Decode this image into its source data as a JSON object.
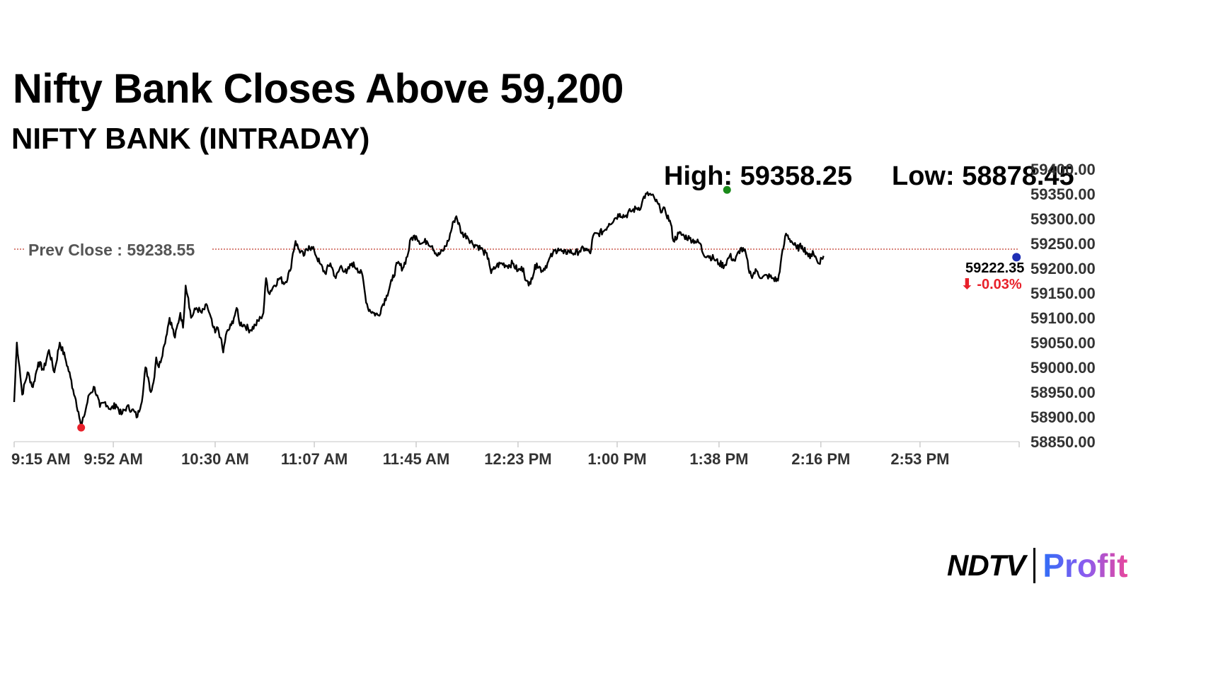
{
  "headline": "Nifty Bank Closes Above 59,200",
  "subheadline": "NIFTY BANK (INTRADAY)",
  "high_label": "High: 59358.25",
  "low_label": "Low: 58878.45",
  "prev_close_label": "Prev Close : 59238.55",
  "last_price_label": "59222.35",
  "change_label": "⬇ -0.03%",
  "logo": {
    "left": "NDTV",
    "right": "Profit"
  },
  "colors": {
    "line": "#000000",
    "high_marker": "#1a8a1a",
    "low_marker": "#e8202a",
    "last_marker": "#1f2fb5",
    "prev_close_line": "#c0392b",
    "change_negative": "#e8202a"
  },
  "chart_data": {
    "type": "line",
    "title": "Nifty Bank Closes Above 59,200",
    "subtitle": "NIFTY BANK (INTRADAY)",
    "xlabel": "",
    "ylabel": "",
    "x_tick_labels": [
      "9:15 AM",
      "9:52 AM",
      "10:30 AM",
      "11:07 AM",
      "11:45 AM",
      "12:23 PM",
      "1:00 PM",
      "1:38 PM",
      "2:16 PM",
      "2:53 PM"
    ],
    "x_tick_minutes": [
      555,
      592,
      630,
      667,
      705,
      743,
      780,
      818,
      856,
      893
    ],
    "xlim_minutes": [
      555,
      930
    ],
    "y_tick_labels": [
      "59400.00",
      "59350.00",
      "59300.00",
      "59250.00",
      "59200.00",
      "59150.00",
      "59100.00",
      "59050.00",
      "59000.00",
      "58950.00",
      "58900.00",
      "58850.00"
    ],
    "ylim": [
      58850,
      59400
    ],
    "prev_close": 59238.55,
    "high": {
      "minute": 821,
      "value": 59358.25
    },
    "low": {
      "minute": 580,
      "value": 58878.45
    },
    "last": {
      "minute": 929,
      "value": 59222.35
    },
    "series": [
      {
        "points": [
          [
            555,
            58930
          ],
          [
            556,
            59050
          ],
          [
            557,
            59000
          ],
          [
            558,
            58945
          ],
          [
            560,
            58990
          ],
          [
            562,
            58960
          ],
          [
            564,
            59010
          ],
          [
            566,
            58995
          ],
          [
            568,
            59035
          ],
          [
            570,
            58990
          ],
          [
            572,
            59050
          ],
          [
            574,
            59020
          ],
          [
            576,
            58980
          ],
          [
            577,
            58955
          ],
          [
            578,
            58935
          ],
          [
            579,
            58910
          ],
          [
            580,
            58878
          ],
          [
            581,
            58900
          ],
          [
            583,
            58945
          ],
          [
            585,
            58960
          ],
          [
            587,
            58920
          ],
          [
            589,
            58930
          ],
          [
            591,
            58915
          ],
          [
            593,
            58925
          ],
          [
            595,
            58905
          ],
          [
            597,
            58920
          ],
          [
            599,
            58915
          ],
          [
            601,
            58900
          ],
          [
            603,
            58945
          ],
          [
            604,
            59000
          ],
          [
            605,
            58980
          ],
          [
            606,
            58950
          ],
          [
            607,
            58970
          ],
          [
            608,
            59020
          ],
          [
            609,
            59000
          ],
          [
            611,
            59045
          ],
          [
            613,
            59100
          ],
          [
            615,
            59060
          ],
          [
            617,
            59110
          ],
          [
            618,
            59080
          ],
          [
            619,
            59165
          ],
          [
            620,
            59140
          ],
          [
            621,
            59100
          ],
          [
            623,
            59120
          ],
          [
            625,
            59110
          ],
          [
            627,
            59125
          ],
          [
            629,
            59085
          ],
          [
            630,
            59070
          ],
          [
            631,
            59080
          ],
          [
            632,
            59060
          ],
          [
            633,
            59030
          ],
          [
            634,
            59065
          ],
          [
            636,
            59085
          ],
          [
            637,
            59100
          ],
          [
            638,
            59120
          ],
          [
            639,
            59090
          ],
          [
            641,
            59085
          ],
          [
            643,
            59075
          ],
          [
            645,
            59085
          ],
          [
            647,
            59100
          ],
          [
            648,
            59110
          ],
          [
            649,
            59180
          ],
          [
            650,
            59150
          ],
          [
            652,
            59165
          ],
          [
            654,
            59180
          ],
          [
            656,
            59170
          ],
          [
            658,
            59195
          ],
          [
            659,
            59230
          ],
          [
            660,
            59255
          ],
          [
            661,
            59240
          ],
          [
            663,
            59225
          ],
          [
            665,
            59245
          ],
          [
            667,
            59235
          ],
          [
            669,
            59210
          ],
          [
            671,
            59190
          ],
          [
            673,
            59210
          ],
          [
            675,
            59180
          ],
          [
            677,
            59205
          ],
          [
            679,
            59190
          ],
          [
            681,
            59210
          ],
          [
            683,
            59200
          ],
          [
            685,
            59185
          ],
          [
            686,
            59145
          ],
          [
            687,
            59120
          ],
          [
            689,
            59110
          ],
          [
            691,
            59105
          ],
          [
            692,
            59120
          ],
          [
            694,
            59145
          ],
          [
            696,
            59175
          ],
          [
            698,
            59210
          ],
          [
            700,
            59200
          ],
          [
            702,
            59230
          ],
          [
            703,
            59260
          ],
          [
            705,
            59265
          ],
          [
            707,
            59250
          ],
          [
            709,
            59255
          ],
          [
            711,
            59245
          ],
          [
            713,
            59225
          ],
          [
            715,
            59235
          ],
          [
            717,
            59255
          ],
          [
            719,
            59295
          ],
          [
            720,
            59305
          ],
          [
            722,
            59270
          ],
          [
            724,
            59265
          ],
          [
            726,
            59250
          ],
          [
            728,
            59245
          ],
          [
            730,
            59235
          ],
          [
            732,
            59220
          ],
          [
            733,
            59190
          ],
          [
            735,
            59205
          ],
          [
            737,
            59210
          ],
          [
            739,
            59205
          ],
          [
            741,
            59210
          ],
          [
            743,
            59195
          ],
          [
            745,
            59200
          ],
          [
            746,
            59175
          ],
          [
            747,
            59165
          ],
          [
            748,
            59180
          ],
          [
            750,
            59210
          ],
          [
            752,
            59195
          ],
          [
            754,
            59210
          ],
          [
            756,
            59230
          ],
          [
            758,
            59240
          ],
          [
            760,
            59230
          ],
          [
            762,
            59235
          ],
          [
            764,
            59230
          ],
          [
            766,
            59235
          ],
          [
            768,
            59240
          ],
          [
            770,
            59230
          ],
          [
            771,
            59265
          ],
          [
            773,
            59270
          ],
          [
            775,
            59275
          ],
          [
            777,
            59290
          ],
          [
            779,
            59300
          ],
          [
            781,
            59310
          ],
          [
            783,
            59305
          ],
          [
            785,
            59315
          ],
          [
            787,
            59320
          ],
          [
            789,
            59325
          ],
          [
            790,
            59345
          ],
          [
            792,
            59350
          ],
          [
            794,
            59340
          ],
          [
            796,
            59320
          ],
          [
            798,
            59315
          ],
          [
            800,
            59290
          ],
          [
            801,
            59255
          ],
          [
            803,
            59270
          ],
          [
            805,
            59265
          ],
          [
            807,
            59260
          ],
          [
            809,
            59255
          ],
          [
            811,
            59250
          ],
          [
            812,
            59230
          ],
          [
            814,
            59225
          ],
          [
            816,
            59220
          ],
          [
            818,
            59210
          ],
          [
            820,
            59205
          ],
          [
            822,
            59225
          ],
          [
            824,
            59215
          ],
          [
            826,
            59240
          ],
          [
            828,
            59230
          ],
          [
            829,
            59200
          ],
          [
            830,
            59185
          ],
          [
            832,
            59195
          ],
          [
            834,
            59180
          ],
          [
            836,
            59185
          ],
          [
            838,
            59180
          ],
          [
            840,
            59175
          ],
          [
            841,
            59210
          ],
          [
            842,
            59240
          ],
          [
            843,
            59270
          ],
          [
            845,
            59255
          ],
          [
            847,
            59240
          ],
          [
            849,
            59245
          ],
          [
            851,
            59230
          ],
          [
            852,
            59220
          ],
          [
            853,
            59235
          ],
          [
            855,
            59210
          ],
          [
            857,
            59225
          ]
        ]
      }
    ]
  }
}
